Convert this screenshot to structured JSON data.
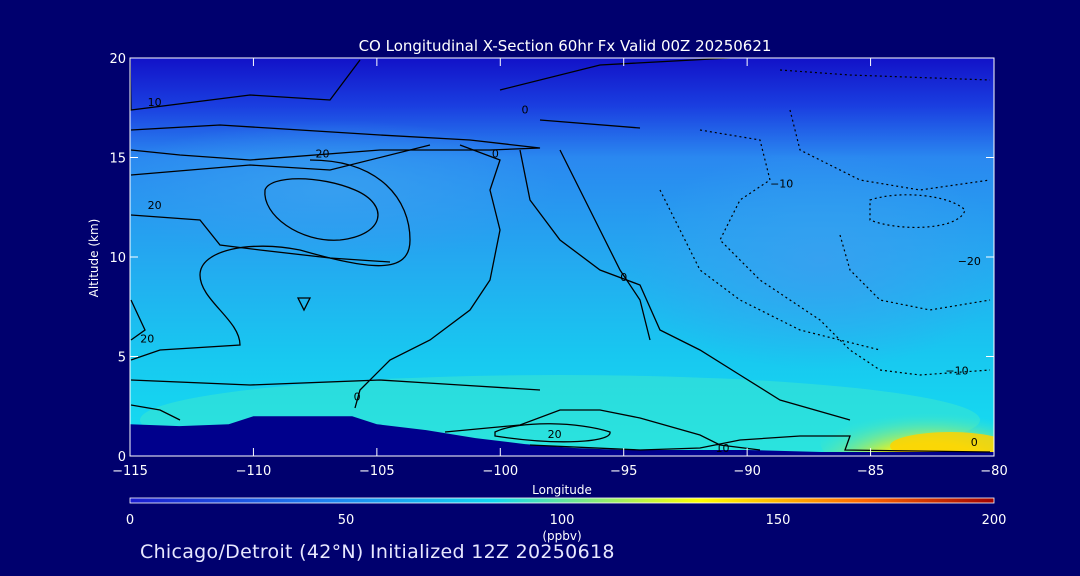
{
  "chart_data": {
    "type": "heatmap",
    "title": "CO Longitudinal X-Section 60hr  Fx Valid 00Z 20250621",
    "xlabel": "Longitude",
    "ylabel": "Altitude (km)",
    "xlim": [
      -115,
      -80
    ],
    "ylim": [
      0,
      20
    ],
    "x_ticks": [
      -115,
      -110,
      -105,
      -100,
      -95,
      -90,
      -85,
      -80
    ],
    "x_tick_labels": [
      "−115",
      "−110",
      "−105",
      "−100",
      "−95",
      "−90",
      "−85",
      "−80"
    ],
    "y_ticks": [
      0,
      5,
      10,
      15,
      20
    ],
    "y_tick_labels": [
      "0",
      "5",
      "10",
      "15",
      "20"
    ],
    "colorbar": {
      "min": 0,
      "max": 200,
      "ticks": [
        0,
        50,
        100,
        150,
        200
      ],
      "tick_labels": [
        "0",
        "50",
        "100",
        "150",
        "200"
      ],
      "unit_label": "(ppbv)",
      "colors": [
        "#1a1ad0",
        "#1e7ff0",
        "#10d8f0",
        "#ffff00",
        "#ff6600",
        "#a00000"
      ]
    },
    "terrain_profile": [
      {
        "lon": -115,
        "alt": 1.6
      },
      {
        "lon": -113,
        "alt": 1.5
      },
      {
        "lon": -111,
        "alt": 1.6
      },
      {
        "lon": -110,
        "alt": 2.0
      },
      {
        "lon": -108,
        "alt": 2.0
      },
      {
        "lon": -106,
        "alt": 2.0
      },
      {
        "lon": -105,
        "alt": 1.6
      },
      {
        "lon": -103,
        "alt": 1.3
      },
      {
        "lon": -101,
        "alt": 0.9
      },
      {
        "lon": -99,
        "alt": 0.6
      },
      {
        "lon": -97,
        "alt": 0.4
      },
      {
        "lon": -95,
        "alt": 0.3
      },
      {
        "lon": -93,
        "alt": 0.3
      },
      {
        "lon": -90,
        "alt": 0.3
      },
      {
        "lon": -87,
        "alt": 0.2
      },
      {
        "lon": -84,
        "alt": 0.2
      },
      {
        "lon": -80,
        "alt": 0.2
      }
    ],
    "contour_labels": [
      {
        "text": "10",
        "lon": -114,
        "alt": 17.6
      },
      {
        "text": "20",
        "lon": -107.2,
        "alt": 15.0
      },
      {
        "text": "0",
        "lon": -100.2,
        "alt": 15.0
      },
      {
        "text": "0",
        "lon": -99.0,
        "alt": 17.2
      },
      {
        "text": "20",
        "lon": -114,
        "alt": 12.4
      },
      {
        "text": "−10",
        "lon": -88.6,
        "alt": 13.5
      },
      {
        "text": "20",
        "lon": -114.3,
        "alt": 5.7
      },
      {
        "text": "0",
        "lon": -95.0,
        "alt": 8.8
      },
      {
        "text": "−20",
        "lon": -81.0,
        "alt": 9.6
      },
      {
        "text": "−10",
        "lon": -81.5,
        "alt": 4.1
      },
      {
        "text": "0",
        "lon": -105.8,
        "alt": 2.8
      },
      {
        "text": "20",
        "lon": -97.8,
        "alt": 0.9
      },
      {
        "text": "10",
        "lon": -91.0,
        "alt": 0.2
      },
      {
        "text": "0",
        "lon": -80.8,
        "alt": 0.5
      }
    ]
  },
  "footer": {
    "caption": "Chicago/Detroit (42°N) Initialized 12Z 20250618"
  }
}
